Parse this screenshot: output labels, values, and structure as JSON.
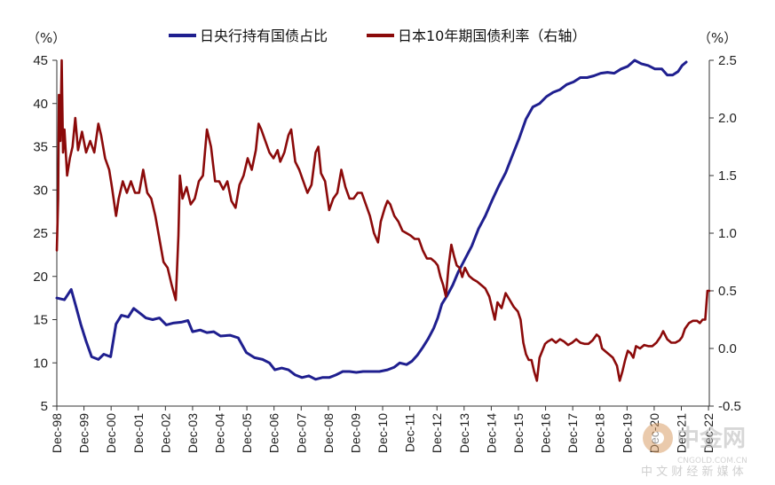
{
  "chart_data": {
    "type": "line",
    "series": [
      {
        "name": "日央行持有国债占比",
        "axis": "left",
        "color": "#1f1f8f",
        "points": [
          [
            1998.92,
            17.5
          ],
          [
            1999.2,
            17.3
          ],
          [
            1999.45,
            18.5
          ],
          [
            1999.6,
            16.8
          ],
          [
            1999.8,
            14.5
          ],
          [
            2000.0,
            12.5
          ],
          [
            2000.2,
            10.7
          ],
          [
            2000.45,
            10.4
          ],
          [
            2000.65,
            11.0
          ],
          [
            2000.9,
            10.7
          ],
          [
            2001.1,
            14.5
          ],
          [
            2001.3,
            15.5
          ],
          [
            2001.55,
            15.3
          ],
          [
            2001.75,
            16.3
          ],
          [
            2002.0,
            15.7
          ],
          [
            2002.2,
            15.2
          ],
          [
            2002.45,
            15.0
          ],
          [
            2002.7,
            15.2
          ],
          [
            2002.95,
            14.4
          ],
          [
            2003.2,
            14.6
          ],
          [
            2003.5,
            14.7
          ],
          [
            2003.75,
            14.9
          ],
          [
            2003.92,
            13.6
          ],
          [
            2004.2,
            13.8
          ],
          [
            2004.45,
            13.5
          ],
          [
            2004.7,
            13.6
          ],
          [
            2004.95,
            13.1
          ],
          [
            2005.3,
            13.2
          ],
          [
            2005.6,
            12.9
          ],
          [
            2005.9,
            11.2
          ],
          [
            2006.2,
            10.6
          ],
          [
            2006.5,
            10.4
          ],
          [
            2006.75,
            10.0
          ],
          [
            2006.95,
            9.2
          ],
          [
            2007.2,
            9.4
          ],
          [
            2007.45,
            9.2
          ],
          [
            2007.7,
            8.6
          ],
          [
            2007.95,
            8.3
          ],
          [
            2008.2,
            8.5
          ],
          [
            2008.45,
            8.1
          ],
          [
            2008.7,
            8.3
          ],
          [
            2008.95,
            8.3
          ],
          [
            2009.2,
            8.6
          ],
          [
            2009.45,
            9.0
          ],
          [
            2009.7,
            9.0
          ],
          [
            2009.95,
            8.9
          ],
          [
            2010.2,
            9.0
          ],
          [
            2010.5,
            9.0
          ],
          [
            2010.8,
            9.0
          ],
          [
            2011.1,
            9.2
          ],
          [
            2011.35,
            9.5
          ],
          [
            2011.55,
            10.0
          ],
          [
            2011.8,
            9.8
          ],
          [
            2012.0,
            10.2
          ],
          [
            2012.2,
            10.9
          ],
          [
            2012.4,
            11.8
          ],
          [
            2012.6,
            12.8
          ],
          [
            2012.8,
            14.0
          ],
          [
            2012.95,
            15.2
          ],
          [
            2013.1,
            16.8
          ],
          [
            2013.3,
            17.8
          ],
          [
            2013.5,
            19.0
          ],
          [
            2013.7,
            20.5
          ],
          [
            2013.95,
            22.0
          ],
          [
            2014.2,
            23.5
          ],
          [
            2014.45,
            25.5
          ],
          [
            2014.7,
            27.0
          ],
          [
            2014.95,
            28.8
          ],
          [
            2015.2,
            30.5
          ],
          [
            2015.45,
            32.0
          ],
          [
            2015.7,
            34.0
          ],
          [
            2015.95,
            36.0
          ],
          [
            2016.2,
            38.2
          ],
          [
            2016.45,
            39.6
          ],
          [
            2016.7,
            40.0
          ],
          [
            2016.95,
            40.8
          ],
          [
            2017.2,
            41.3
          ],
          [
            2017.45,
            41.6
          ],
          [
            2017.7,
            42.2
          ],
          [
            2017.95,
            42.5
          ],
          [
            2018.2,
            43.0
          ],
          [
            2018.45,
            43.0
          ],
          [
            2018.7,
            43.2
          ],
          [
            2018.95,
            43.5
          ],
          [
            2019.2,
            43.6
          ],
          [
            2019.45,
            43.5
          ],
          [
            2019.7,
            44.0
          ],
          [
            2019.95,
            44.3
          ],
          [
            2020.2,
            45.0
          ],
          [
            2020.45,
            44.6
          ],
          [
            2020.7,
            44.4
          ],
          [
            2020.95,
            44.0
          ],
          [
            2021.2,
            44.0
          ],
          [
            2021.4,
            43.3
          ],
          [
            2021.6,
            43.3
          ],
          [
            2021.8,
            43.7
          ],
          [
            2021.95,
            44.4
          ],
          [
            2022.1,
            44.8
          ]
        ]
      },
      {
        "name": "日本10年期国债利率（右轴）",
        "axis": "right",
        "color": "#8b0a0a",
        "points": [
          [
            1998.92,
            0.85
          ],
          [
            1998.97,
            1.3
          ],
          [
            1999.0,
            2.2
          ],
          [
            1999.05,
            1.8
          ],
          [
            1999.1,
            2.5
          ],
          [
            1999.15,
            1.7
          ],
          [
            1999.2,
            1.9
          ],
          [
            1999.3,
            1.5
          ],
          [
            1999.4,
            1.65
          ],
          [
            1999.5,
            1.75
          ],
          [
            1999.6,
            2.0
          ],
          [
            1999.7,
            1.72
          ],
          [
            1999.85,
            1.88
          ],
          [
            2000.0,
            1.7
          ],
          [
            2000.15,
            1.8
          ],
          [
            2000.3,
            1.7
          ],
          [
            2000.45,
            1.95
          ],
          [
            2000.55,
            1.85
          ],
          [
            2000.7,
            1.65
          ],
          [
            2000.85,
            1.55
          ],
          [
            2000.95,
            1.4
          ],
          [
            2001.1,
            1.15
          ],
          [
            2001.2,
            1.3
          ],
          [
            2001.35,
            1.45
          ],
          [
            2001.5,
            1.35
          ],
          [
            2001.65,
            1.45
          ],
          [
            2001.8,
            1.35
          ],
          [
            2001.95,
            1.35
          ],
          [
            2002.1,
            1.55
          ],
          [
            2002.25,
            1.35
          ],
          [
            2002.4,
            1.3
          ],
          [
            2002.55,
            1.15
          ],
          [
            2002.7,
            0.95
          ],
          [
            2002.85,
            0.75
          ],
          [
            2003.0,
            0.7
          ],
          [
            2003.15,
            0.55
          ],
          [
            2003.3,
            0.42
          ],
          [
            2003.4,
            0.98
          ],
          [
            2003.45,
            1.5
          ],
          [
            2003.55,
            1.3
          ],
          [
            2003.7,
            1.4
          ],
          [
            2003.85,
            1.25
          ],
          [
            2004.0,
            1.3
          ],
          [
            2004.15,
            1.45
          ],
          [
            2004.3,
            1.5
          ],
          [
            2004.45,
            1.9
          ],
          [
            2004.6,
            1.75
          ],
          [
            2004.75,
            1.45
          ],
          [
            2004.9,
            1.45
          ],
          [
            2005.05,
            1.38
          ],
          [
            2005.2,
            1.45
          ],
          [
            2005.35,
            1.28
          ],
          [
            2005.5,
            1.22
          ],
          [
            2005.65,
            1.42
          ],
          [
            2005.8,
            1.5
          ],
          [
            2005.95,
            1.65
          ],
          [
            2006.1,
            1.55
          ],
          [
            2006.25,
            1.72
          ],
          [
            2006.35,
            1.95
          ],
          [
            2006.45,
            1.9
          ],
          [
            2006.6,
            1.8
          ],
          [
            2006.75,
            1.7
          ],
          [
            2006.9,
            1.65
          ],
          [
            2007.05,
            1.72
          ],
          [
            2007.15,
            1.62
          ],
          [
            2007.3,
            1.7
          ],
          [
            2007.45,
            1.85
          ],
          [
            2007.55,
            1.9
          ],
          [
            2007.7,
            1.62
          ],
          [
            2007.85,
            1.55
          ],
          [
            2008.0,
            1.45
          ],
          [
            2008.15,
            1.35
          ],
          [
            2008.3,
            1.42
          ],
          [
            2008.45,
            1.7
          ],
          [
            2008.55,
            1.75
          ],
          [
            2008.65,
            1.52
          ],
          [
            2008.8,
            1.45
          ],
          [
            2008.95,
            1.2
          ],
          [
            2009.1,
            1.3
          ],
          [
            2009.25,
            1.35
          ],
          [
            2009.4,
            1.55
          ],
          [
            2009.55,
            1.4
          ],
          [
            2009.7,
            1.3
          ],
          [
            2009.85,
            1.3
          ],
          [
            2010.0,
            1.35
          ],
          [
            2010.15,
            1.35
          ],
          [
            2010.3,
            1.25
          ],
          [
            2010.45,
            1.15
          ],
          [
            2010.6,
            1.0
          ],
          [
            2010.75,
            0.92
          ],
          [
            2010.85,
            1.1
          ],
          [
            2011.0,
            1.22
          ],
          [
            2011.1,
            1.28
          ],
          [
            2011.2,
            1.25
          ],
          [
            2011.35,
            1.15
          ],
          [
            2011.5,
            1.1
          ],
          [
            2011.65,
            1.02
          ],
          [
            2011.8,
            1.0
          ],
          [
            2011.95,
            0.98
          ],
          [
            2012.1,
            0.95
          ],
          [
            2012.25,
            0.95
          ],
          [
            2012.4,
            0.85
          ],
          [
            2012.55,
            0.78
          ],
          [
            2012.7,
            0.78
          ],
          [
            2012.85,
            0.75
          ],
          [
            2012.95,
            0.72
          ],
          [
            2013.05,
            0.62
          ],
          [
            2013.15,
            0.55
          ],
          [
            2013.25,
            0.45
          ],
          [
            2013.35,
            0.72
          ],
          [
            2013.45,
            0.9
          ],
          [
            2013.55,
            0.8
          ],
          [
            2013.65,
            0.72
          ],
          [
            2013.75,
            0.7
          ],
          [
            2013.85,
            0.62
          ],
          [
            2013.95,
            0.7
          ],
          [
            2014.1,
            0.63
          ],
          [
            2014.25,
            0.6
          ],
          [
            2014.4,
            0.58
          ],
          [
            2014.55,
            0.55
          ],
          [
            2014.7,
            0.52
          ],
          [
            2014.85,
            0.45
          ],
          [
            2014.95,
            0.35
          ],
          [
            2015.05,
            0.25
          ],
          [
            2015.15,
            0.4
          ],
          [
            2015.3,
            0.35
          ],
          [
            2015.45,
            0.48
          ],
          [
            2015.6,
            0.42
          ],
          [
            2015.75,
            0.36
          ],
          [
            2015.9,
            0.32
          ],
          [
            2016.0,
            0.25
          ],
          [
            2016.1,
            0.05
          ],
          [
            2016.2,
            -0.05
          ],
          [
            2016.3,
            -0.1
          ],
          [
            2016.4,
            -0.1
          ],
          [
            2016.5,
            -0.2
          ],
          [
            2016.6,
            -0.28
          ],
          [
            2016.7,
            -0.08
          ],
          [
            2016.8,
            -0.02
          ],
          [
            2016.9,
            0.04
          ],
          [
            2017.0,
            0.06
          ],
          [
            2017.15,
            0.08
          ],
          [
            2017.3,
            0.05
          ],
          [
            2017.45,
            0.08
          ],
          [
            2017.6,
            0.06
          ],
          [
            2017.75,
            0.03
          ],
          [
            2017.9,
            0.05
          ],
          [
            2018.05,
            0.08
          ],
          [
            2018.2,
            0.05
          ],
          [
            2018.35,
            0.04
          ],
          [
            2018.5,
            0.04
          ],
          [
            2018.65,
            0.07
          ],
          [
            2018.8,
            0.12
          ],
          [
            2018.9,
            0.1
          ],
          [
            2019.0,
            0.0
          ],
          [
            2019.1,
            -0.02
          ],
          [
            2019.25,
            -0.05
          ],
          [
            2019.4,
            -0.08
          ],
          [
            2019.55,
            -0.15
          ],
          [
            2019.65,
            -0.28
          ],
          [
            2019.75,
            -0.2
          ],
          [
            2019.85,
            -0.1
          ],
          [
            2019.95,
            -0.02
          ],
          [
            2020.05,
            -0.04
          ],
          [
            2020.15,
            -0.08
          ],
          [
            2020.25,
            0.02
          ],
          [
            2020.4,
            0.0
          ],
          [
            2020.55,
            0.03
          ],
          [
            2020.7,
            0.02
          ],
          [
            2020.85,
            0.02
          ],
          [
            2021.0,
            0.05
          ],
          [
            2021.15,
            0.1
          ],
          [
            2021.25,
            0.15
          ],
          [
            2021.4,
            0.08
          ],
          [
            2021.55,
            0.05
          ],
          [
            2021.7,
            0.05
          ],
          [
            2021.85,
            0.07
          ],
          [
            2021.95,
            0.1
          ],
          [
            2022.05,
            0.17
          ],
          [
            2022.2,
            0.22
          ],
          [
            2022.35,
            0.24
          ],
          [
            2022.5,
            0.24
          ],
          [
            2022.6,
            0.22
          ],
          [
            2022.7,
            0.25
          ],
          [
            2022.8,
            0.25
          ],
          [
            2022.88,
            0.5
          ],
          [
            2022.95,
            0.5
          ]
        ]
      }
    ],
    "xlim": [
      1998.92,
      2022.95
    ],
    "ylim_left": [
      5,
      45
    ],
    "ylim_right": [
      -0.5,
      2.5
    ],
    "left_ticks": [
      "5",
      "10",
      "15",
      "20",
      "25",
      "30",
      "35",
      "40",
      "45"
    ],
    "right_ticks": [
      "-0.5",
      "0.0",
      "0.5",
      "1.0",
      "1.5",
      "2.0",
      "2.5"
    ],
    "x_ticks": [
      "Dec-98",
      "Dec-99",
      "Dec-00",
      "Dec-01",
      "Dec-02",
      "Dec-03",
      "Dec-04",
      "Dec-05",
      "Dec-06",
      "Dec-07",
      "Dec-08",
      "Dec-09",
      "Dec-10",
      "Dec-11",
      "Dec-12",
      "Dec-13",
      "Dec-14",
      "Dec-15",
      "Dec-16",
      "Dec-17",
      "Dec-18",
      "Dec-19",
      "Dec-20",
      "Dec-21",
      "Dec-22"
    ],
    "left_unit": "（%）",
    "right_unit": "（%）",
    "legend_position": "top",
    "grid": false
  },
  "watermark": {
    "logo_text": "中金网",
    "site": "CNGOLD.COM.CN",
    "slogan": "中 文 财 经 新 媒 体"
  }
}
